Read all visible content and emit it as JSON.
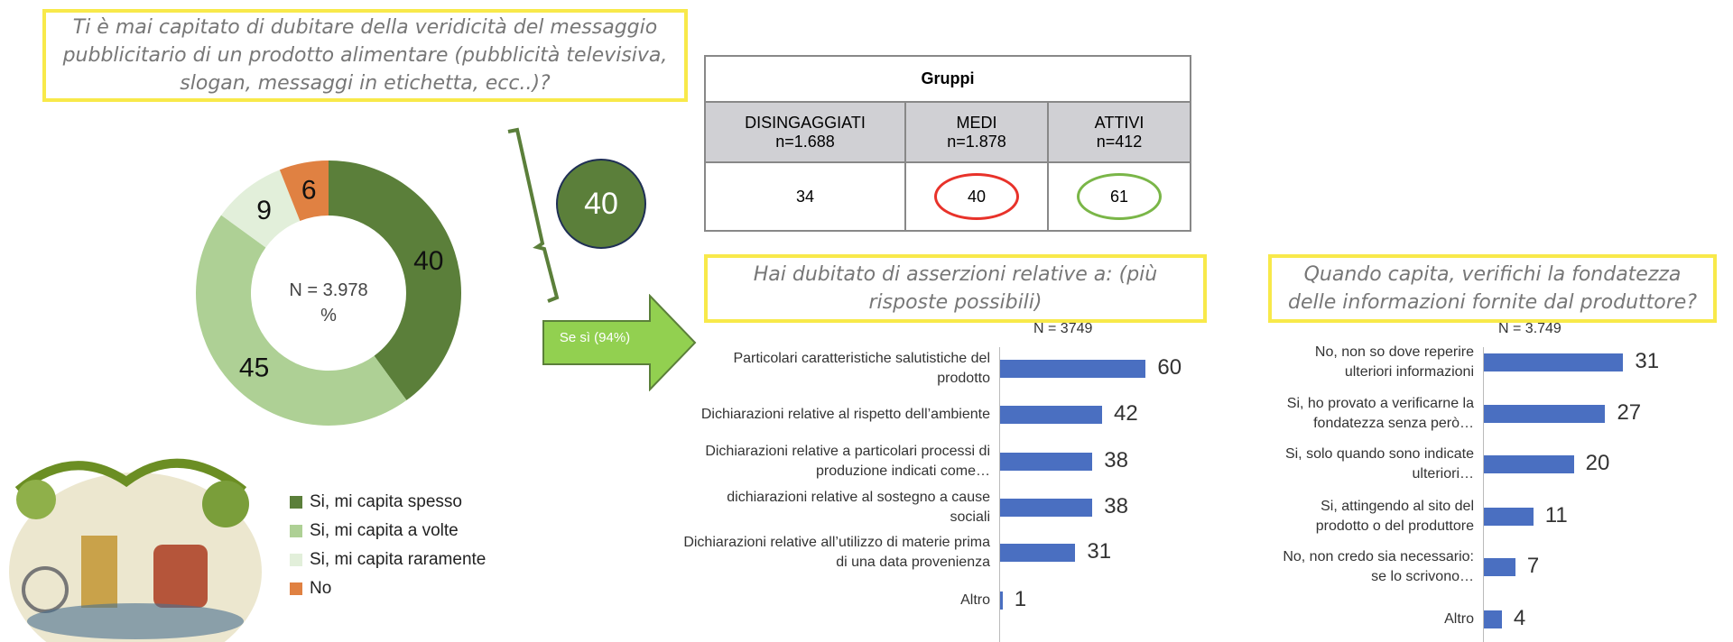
{
  "question_main": "Ti è mai capitato di dubitare della veridicità del messaggio pubblicitario di un prodotto alimentare (pubblicità televisiva, slogan, messaggi in etichetta, ecc..)?",
  "question_assertions": "Hai dubitato di asserzioni relative a: (più risposte possibili)",
  "question_verify": "Quando capita, verifichi la fondatezza delle informazioni fornite dal produttore?",
  "arrow_label": "Se sì (94%)",
  "highlight_total": "40",
  "groups_table": {
    "title": "Gruppi",
    "columns": [
      {
        "name": "DISINGAGGIATI",
        "n": "n=1.688",
        "value": "34"
      },
      {
        "name": "MEDI",
        "n": "n=1.878",
        "value": "40"
      },
      {
        "name": "ATTIVI",
        "n": "n=412",
        "value": "61"
      }
    ]
  },
  "colors": {
    "dark_green": "#5b7f3a",
    "light_green": "#aed095",
    "pale_green": "#e2efda",
    "orange": "#e08142",
    "bar_blue": "#4a6fc1",
    "red_oval": "#e8322a",
    "green_oval": "#7ab648"
  },
  "chart_data": [
    {
      "type": "pie",
      "title": "Ti è mai capitato di dubitare della veridicità del messaggio pubblicitario",
      "center_label": [
        "N = 3.978",
        "%"
      ],
      "categories": [
        "Si, mi capita spesso",
        "Si, mi capita a volte",
        "Si, mi capita raramente",
        "No"
      ],
      "values": [
        40,
        45,
        9,
        6
      ],
      "legend": "bottom-right"
    },
    {
      "type": "bar",
      "orientation": "horizontal",
      "subtitle": "N = 3749",
      "categories": [
        "Particolari caratteristiche salutistiche del prodotto",
        "Dichiarazioni relative al rispetto dell’ambiente",
        "Dichiarazioni relative a particolari processi di produzione indicati come…",
        "dichiarazioni relative al sostegno a cause sociali",
        "Dichiarazioni relative all’utilizzo di materie prima di una data provenienza",
        "Altro"
      ],
      "values": [
        60,
        42,
        38,
        38,
        31,
        1
      ]
    },
    {
      "type": "bar",
      "orientation": "horizontal",
      "subtitle": "N = 3.749",
      "categories": [
        "No, non so dove reperire ulteriori informazioni",
        "Si, ho provato a verificarne la fondatezza senza però…",
        "Si, solo quando sono indicate ulteriori…",
        "Si, attingendo al sito del prodotto o del produttore",
        "No, non credo sia necessario: se lo scrivono…",
        "Altro"
      ],
      "values": [
        31,
        27,
        20,
        11,
        7,
        4
      ]
    }
  ]
}
